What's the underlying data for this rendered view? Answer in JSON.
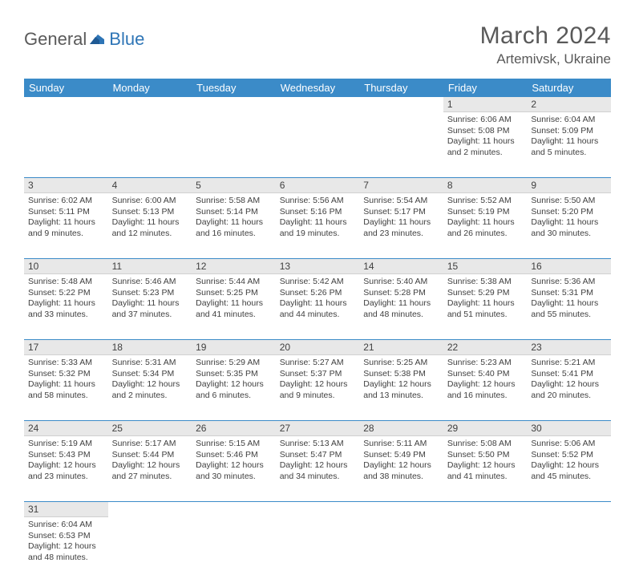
{
  "logo": {
    "part1": "General",
    "part2": "Blue"
  },
  "title": "March 2024",
  "location": "Artemivsk, Ukraine",
  "colors": {
    "header_bg": "#3b8bc8",
    "header_fg": "#ffffff",
    "daynum_bg": "#e8e8e8",
    "text": "#404040",
    "rule": "#3b8bc8",
    "logo_gray": "#5a5a5a",
    "logo_blue": "#2e75b6"
  },
  "dayHeaders": [
    "Sunday",
    "Monday",
    "Tuesday",
    "Wednesday",
    "Thursday",
    "Friday",
    "Saturday"
  ],
  "weeks": [
    [
      null,
      null,
      null,
      null,
      null,
      {
        "n": "1",
        "sr": "6:06 AM",
        "ss": "5:08 PM",
        "dl": "11 hours and 2 minutes."
      },
      {
        "n": "2",
        "sr": "6:04 AM",
        "ss": "5:09 PM",
        "dl": "11 hours and 5 minutes."
      }
    ],
    [
      {
        "n": "3",
        "sr": "6:02 AM",
        "ss": "5:11 PM",
        "dl": "11 hours and 9 minutes."
      },
      {
        "n": "4",
        "sr": "6:00 AM",
        "ss": "5:13 PM",
        "dl": "11 hours and 12 minutes."
      },
      {
        "n": "5",
        "sr": "5:58 AM",
        "ss": "5:14 PM",
        "dl": "11 hours and 16 minutes."
      },
      {
        "n": "6",
        "sr": "5:56 AM",
        "ss": "5:16 PM",
        "dl": "11 hours and 19 minutes."
      },
      {
        "n": "7",
        "sr": "5:54 AM",
        "ss": "5:17 PM",
        "dl": "11 hours and 23 minutes."
      },
      {
        "n": "8",
        "sr": "5:52 AM",
        "ss": "5:19 PM",
        "dl": "11 hours and 26 minutes."
      },
      {
        "n": "9",
        "sr": "5:50 AM",
        "ss": "5:20 PM",
        "dl": "11 hours and 30 minutes."
      }
    ],
    [
      {
        "n": "10",
        "sr": "5:48 AM",
        "ss": "5:22 PM",
        "dl": "11 hours and 33 minutes."
      },
      {
        "n": "11",
        "sr": "5:46 AM",
        "ss": "5:23 PM",
        "dl": "11 hours and 37 minutes."
      },
      {
        "n": "12",
        "sr": "5:44 AM",
        "ss": "5:25 PM",
        "dl": "11 hours and 41 minutes."
      },
      {
        "n": "13",
        "sr": "5:42 AM",
        "ss": "5:26 PM",
        "dl": "11 hours and 44 minutes."
      },
      {
        "n": "14",
        "sr": "5:40 AM",
        "ss": "5:28 PM",
        "dl": "11 hours and 48 minutes."
      },
      {
        "n": "15",
        "sr": "5:38 AM",
        "ss": "5:29 PM",
        "dl": "11 hours and 51 minutes."
      },
      {
        "n": "16",
        "sr": "5:36 AM",
        "ss": "5:31 PM",
        "dl": "11 hours and 55 minutes."
      }
    ],
    [
      {
        "n": "17",
        "sr": "5:33 AM",
        "ss": "5:32 PM",
        "dl": "11 hours and 58 minutes."
      },
      {
        "n": "18",
        "sr": "5:31 AM",
        "ss": "5:34 PM",
        "dl": "12 hours and 2 minutes."
      },
      {
        "n": "19",
        "sr": "5:29 AM",
        "ss": "5:35 PM",
        "dl": "12 hours and 6 minutes."
      },
      {
        "n": "20",
        "sr": "5:27 AM",
        "ss": "5:37 PM",
        "dl": "12 hours and 9 minutes."
      },
      {
        "n": "21",
        "sr": "5:25 AM",
        "ss": "5:38 PM",
        "dl": "12 hours and 13 minutes."
      },
      {
        "n": "22",
        "sr": "5:23 AM",
        "ss": "5:40 PM",
        "dl": "12 hours and 16 minutes."
      },
      {
        "n": "23",
        "sr": "5:21 AM",
        "ss": "5:41 PM",
        "dl": "12 hours and 20 minutes."
      }
    ],
    [
      {
        "n": "24",
        "sr": "5:19 AM",
        "ss": "5:43 PM",
        "dl": "12 hours and 23 minutes."
      },
      {
        "n": "25",
        "sr": "5:17 AM",
        "ss": "5:44 PM",
        "dl": "12 hours and 27 minutes."
      },
      {
        "n": "26",
        "sr": "5:15 AM",
        "ss": "5:46 PM",
        "dl": "12 hours and 30 minutes."
      },
      {
        "n": "27",
        "sr": "5:13 AM",
        "ss": "5:47 PM",
        "dl": "12 hours and 34 minutes."
      },
      {
        "n": "28",
        "sr": "5:11 AM",
        "ss": "5:49 PM",
        "dl": "12 hours and 38 minutes."
      },
      {
        "n": "29",
        "sr": "5:08 AM",
        "ss": "5:50 PM",
        "dl": "12 hours and 41 minutes."
      },
      {
        "n": "30",
        "sr": "5:06 AM",
        "ss": "5:52 PM",
        "dl": "12 hours and 45 minutes."
      }
    ],
    [
      {
        "n": "31",
        "sr": "6:04 AM",
        "ss": "6:53 PM",
        "dl": "12 hours and 48 minutes."
      },
      null,
      null,
      null,
      null,
      null,
      null
    ]
  ],
  "labels": {
    "sunrise": "Sunrise: ",
    "sunset": "Sunset: ",
    "daylight": "Daylight: "
  }
}
